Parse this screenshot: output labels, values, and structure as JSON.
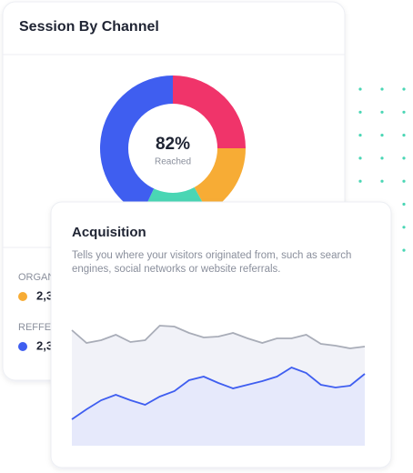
{
  "chart_data": [
    {
      "type": "pie",
      "title": "Session By Channel",
      "center_label": "82%",
      "center_sublabel": "Reached",
      "values": [
        25,
        17,
        15,
        43
      ],
      "colors": [
        "#f0346a",
        "#f7ac35",
        "#4ad6b4",
        "#3f5ef0"
      ]
    },
    {
      "type": "area",
      "title": "Acquisition",
      "subtitle_lines": [
        "Tells you where your visitors originated from, such as search",
        "engines, social networks or website referrals."
      ],
      "x": [
        0,
        1,
        2,
        3,
        4,
        5,
        6,
        7,
        8,
        9,
        10,
        11,
        12,
        13,
        14,
        15,
        16,
        17,
        18,
        19,
        20
      ],
      "xlim": [
        0,
        20
      ],
      "ylim": [
        0,
        150
      ],
      "series": [
        {
          "color": "#a9adb8",
          "fill": "#f1f2f8",
          "values": [
            127,
            113,
            116,
            122,
            114,
            116,
            132,
            131,
            124,
            119,
            120,
            124,
            118,
            113,
            118,
            118,
            122,
            112,
            110,
            107,
            109
          ]
        },
        {
          "color": "#3f5ef0",
          "fill": "#e6e9fb",
          "values": [
            29,
            40,
            50,
            56,
            50,
            45,
            54,
            60,
            72,
            76,
            69,
            63,
            67,
            71,
            76,
            86,
            80,
            67,
            64,
            66,
            79
          ]
        }
      ]
    }
  ],
  "channels": [
    {
      "name": "ORGAN",
      "value": "2,3",
      "color": "#f7ac35"
    },
    {
      "name": "REFFE",
      "value": "2,3",
      "color": "#3f5ef0"
    }
  ]
}
